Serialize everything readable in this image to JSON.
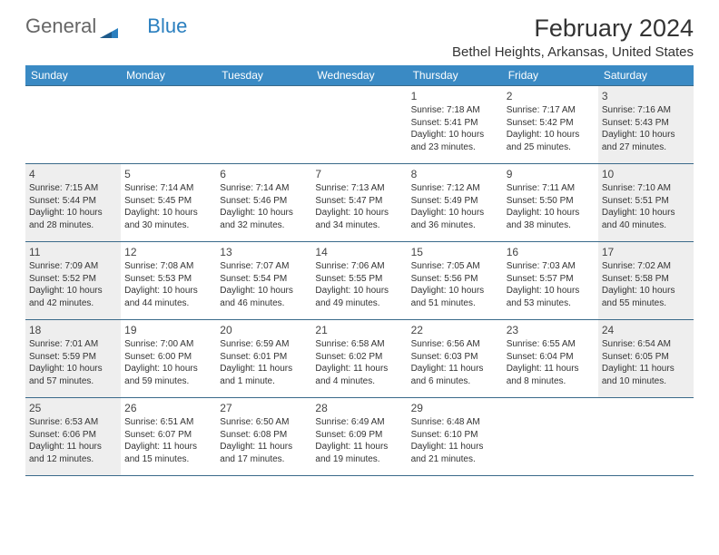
{
  "logo": {
    "part1": "General",
    "part2": "Blue"
  },
  "title": "February 2024",
  "location": "Bethel Heights, Arkansas, United States",
  "colors": {
    "header_bg": "#3a8ac4",
    "header_text": "#ffffff",
    "border": "#3a6a8a",
    "weekend_bg": "#eeeeee",
    "text": "#333333",
    "logo_gray": "#666666",
    "logo_blue": "#2a7fbf"
  },
  "day_headers": [
    "Sunday",
    "Monday",
    "Tuesday",
    "Wednesday",
    "Thursday",
    "Friday",
    "Saturday"
  ],
  "weeks": [
    [
      null,
      null,
      null,
      null,
      {
        "n": "1",
        "sr": "7:18 AM",
        "ss": "5:41 PM",
        "dl": "10 hours and 23 minutes."
      },
      {
        "n": "2",
        "sr": "7:17 AM",
        "ss": "5:42 PM",
        "dl": "10 hours and 25 minutes."
      },
      {
        "n": "3",
        "sr": "7:16 AM",
        "ss": "5:43 PM",
        "dl": "10 hours and 27 minutes."
      }
    ],
    [
      {
        "n": "4",
        "sr": "7:15 AM",
        "ss": "5:44 PM",
        "dl": "10 hours and 28 minutes."
      },
      {
        "n": "5",
        "sr": "7:14 AM",
        "ss": "5:45 PM",
        "dl": "10 hours and 30 minutes."
      },
      {
        "n": "6",
        "sr": "7:14 AM",
        "ss": "5:46 PM",
        "dl": "10 hours and 32 minutes."
      },
      {
        "n": "7",
        "sr": "7:13 AM",
        "ss": "5:47 PM",
        "dl": "10 hours and 34 minutes."
      },
      {
        "n": "8",
        "sr": "7:12 AM",
        "ss": "5:49 PM",
        "dl": "10 hours and 36 minutes."
      },
      {
        "n": "9",
        "sr": "7:11 AM",
        "ss": "5:50 PM",
        "dl": "10 hours and 38 minutes."
      },
      {
        "n": "10",
        "sr": "7:10 AM",
        "ss": "5:51 PM",
        "dl": "10 hours and 40 minutes."
      }
    ],
    [
      {
        "n": "11",
        "sr": "7:09 AM",
        "ss": "5:52 PM",
        "dl": "10 hours and 42 minutes."
      },
      {
        "n": "12",
        "sr": "7:08 AM",
        "ss": "5:53 PM",
        "dl": "10 hours and 44 minutes."
      },
      {
        "n": "13",
        "sr": "7:07 AM",
        "ss": "5:54 PM",
        "dl": "10 hours and 46 minutes."
      },
      {
        "n": "14",
        "sr": "7:06 AM",
        "ss": "5:55 PM",
        "dl": "10 hours and 49 minutes."
      },
      {
        "n": "15",
        "sr": "7:05 AM",
        "ss": "5:56 PM",
        "dl": "10 hours and 51 minutes."
      },
      {
        "n": "16",
        "sr": "7:03 AM",
        "ss": "5:57 PM",
        "dl": "10 hours and 53 minutes."
      },
      {
        "n": "17",
        "sr": "7:02 AM",
        "ss": "5:58 PM",
        "dl": "10 hours and 55 minutes."
      }
    ],
    [
      {
        "n": "18",
        "sr": "7:01 AM",
        "ss": "5:59 PM",
        "dl": "10 hours and 57 minutes."
      },
      {
        "n": "19",
        "sr": "7:00 AM",
        "ss": "6:00 PM",
        "dl": "10 hours and 59 minutes."
      },
      {
        "n": "20",
        "sr": "6:59 AM",
        "ss": "6:01 PM",
        "dl": "11 hours and 1 minute."
      },
      {
        "n": "21",
        "sr": "6:58 AM",
        "ss": "6:02 PM",
        "dl": "11 hours and 4 minutes."
      },
      {
        "n": "22",
        "sr": "6:56 AM",
        "ss": "6:03 PM",
        "dl": "11 hours and 6 minutes."
      },
      {
        "n": "23",
        "sr": "6:55 AM",
        "ss": "6:04 PM",
        "dl": "11 hours and 8 minutes."
      },
      {
        "n": "24",
        "sr": "6:54 AM",
        "ss": "6:05 PM",
        "dl": "11 hours and 10 minutes."
      }
    ],
    [
      {
        "n": "25",
        "sr": "6:53 AM",
        "ss": "6:06 PM",
        "dl": "11 hours and 12 minutes."
      },
      {
        "n": "26",
        "sr": "6:51 AM",
        "ss": "6:07 PM",
        "dl": "11 hours and 15 minutes."
      },
      {
        "n": "27",
        "sr": "6:50 AM",
        "ss": "6:08 PM",
        "dl": "11 hours and 17 minutes."
      },
      {
        "n": "28",
        "sr": "6:49 AM",
        "ss": "6:09 PM",
        "dl": "11 hours and 19 minutes."
      },
      {
        "n": "29",
        "sr": "6:48 AM",
        "ss": "6:10 PM",
        "dl": "11 hours and 21 minutes."
      },
      null,
      null
    ]
  ],
  "labels": {
    "sunrise": "Sunrise: ",
    "sunset": "Sunset: ",
    "daylight": "Daylight: "
  }
}
